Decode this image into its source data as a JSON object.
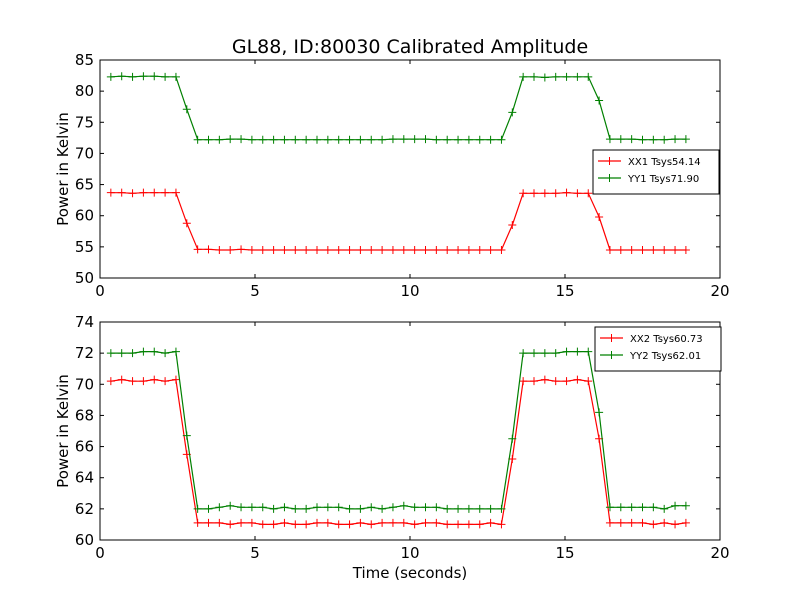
{
  "title": "GL88, ID:80030 Calibrated Amplitude",
  "chart_data": [
    {
      "type": "line",
      "ylabel": "Power in Kelvin",
      "xlabel": "",
      "xlim": [
        0,
        20
      ],
      "ylim": [
        50,
        85
      ],
      "xticks": [
        "0",
        "5",
        "10",
        "15",
        "20"
      ],
      "yticks": [
        "50",
        "55",
        "60",
        "65",
        "70",
        "75",
        "80",
        "85"
      ],
      "legend_position": "right",
      "x": [
        0.35,
        0.7,
        1.05,
        1.4,
        1.75,
        2.1,
        2.45,
        2.8,
        3.15,
        3.5,
        3.85,
        4.2,
        4.55,
        4.9,
        5.25,
        5.6,
        5.95,
        6.3,
        6.65,
        7.0,
        7.35,
        7.7,
        8.05,
        8.4,
        8.75,
        9.1,
        9.45,
        9.8,
        10.15,
        10.5,
        10.85,
        11.2,
        11.55,
        11.9,
        12.25,
        12.6,
        12.95,
        13.3,
        13.65,
        14.0,
        14.35,
        14.7,
        15.05,
        15.4,
        15.75,
        16.1,
        16.45,
        16.8,
        17.15,
        17.5,
        17.85,
        18.2,
        18.55,
        18.9
      ],
      "series": [
        {
          "name": "XX1 Tsys54.14",
          "color": "#ff0000",
          "values": [
            63.7,
            63.7,
            63.6,
            63.7,
            63.7,
            63.7,
            63.7,
            58.8,
            54.6,
            54.6,
            54.5,
            54.5,
            54.6,
            54.5,
            54.5,
            54.5,
            54.5,
            54.5,
            54.5,
            54.5,
            54.5,
            54.5,
            54.5,
            54.5,
            54.5,
            54.5,
            54.5,
            54.5,
            54.5,
            54.5,
            54.5,
            54.5,
            54.5,
            54.5,
            54.5,
            54.5,
            54.5,
            58.5,
            63.6,
            63.6,
            63.6,
            63.6,
            63.7,
            63.6,
            63.6,
            59.8,
            54.5,
            54.5,
            54.5,
            54.5,
            54.5,
            54.5,
            54.5,
            54.5
          ]
        },
        {
          "name": "YY1 Tsys71.90",
          "color": "#008000",
          "values": [
            82.3,
            82.4,
            82.3,
            82.4,
            82.4,
            82.3,
            82.3,
            77.1,
            72.2,
            72.2,
            72.2,
            72.3,
            72.3,
            72.2,
            72.2,
            72.2,
            72.2,
            72.2,
            72.2,
            72.2,
            72.2,
            72.2,
            72.2,
            72.2,
            72.2,
            72.2,
            72.3,
            72.3,
            72.3,
            72.3,
            72.2,
            72.2,
            72.2,
            72.2,
            72.2,
            72.2,
            72.2,
            76.6,
            82.3,
            82.3,
            82.2,
            82.3,
            82.3,
            82.3,
            82.3,
            78.5,
            72.3,
            72.3,
            72.3,
            72.2,
            72.2,
            72.2,
            72.3,
            72.3
          ]
        }
      ]
    },
    {
      "type": "line",
      "ylabel": "Power in Kelvin",
      "xlabel": "Time (seconds)",
      "xlim": [
        0,
        20
      ],
      "ylim": [
        60,
        74
      ],
      "xticks": [
        "0",
        "5",
        "10",
        "15",
        "20"
      ],
      "yticks": [
        "60",
        "62",
        "64",
        "66",
        "68",
        "70",
        "72",
        "74"
      ],
      "legend_position": "top-right",
      "x": [
        0.35,
        0.7,
        1.05,
        1.4,
        1.75,
        2.1,
        2.45,
        2.8,
        3.15,
        3.5,
        3.85,
        4.2,
        4.55,
        4.9,
        5.25,
        5.6,
        5.95,
        6.3,
        6.65,
        7.0,
        7.35,
        7.7,
        8.05,
        8.4,
        8.75,
        9.1,
        9.45,
        9.8,
        10.15,
        10.5,
        10.85,
        11.2,
        11.55,
        11.9,
        12.25,
        12.6,
        12.95,
        13.3,
        13.65,
        14.0,
        14.35,
        14.7,
        15.05,
        15.4,
        15.75,
        16.1,
        16.45,
        16.8,
        17.15,
        17.5,
        17.85,
        18.2,
        18.55,
        18.9
      ],
      "series": [
        {
          "name": "XX2 Tsys60.73",
          "color": "#ff0000",
          "values": [
            70.2,
            70.3,
            70.2,
            70.2,
            70.3,
            70.2,
            70.3,
            65.5,
            61.1,
            61.1,
            61.1,
            61.0,
            61.1,
            61.1,
            61.0,
            61.0,
            61.1,
            61.0,
            61.0,
            61.1,
            61.1,
            61.0,
            61.0,
            61.1,
            61.0,
            61.1,
            61.1,
            61.1,
            61.0,
            61.1,
            61.1,
            61.0,
            61.0,
            61.0,
            61.0,
            61.1,
            61.0,
            65.2,
            70.2,
            70.2,
            70.3,
            70.2,
            70.2,
            70.3,
            70.2,
            66.5,
            61.1,
            61.1,
            61.1,
            61.1,
            61.0,
            61.1,
            61.0,
            61.1
          ]
        },
        {
          "name": "YY2 Tsys62.01",
          "color": "#008000",
          "values": [
            72.0,
            72.0,
            72.0,
            72.1,
            72.1,
            72.0,
            72.1,
            66.7,
            62.0,
            62.0,
            62.1,
            62.2,
            62.1,
            62.1,
            62.1,
            62.0,
            62.1,
            62.0,
            62.0,
            62.1,
            62.1,
            62.1,
            62.0,
            62.0,
            62.1,
            62.0,
            62.1,
            62.2,
            62.1,
            62.1,
            62.1,
            62.0,
            62.0,
            62.0,
            62.0,
            62.0,
            62.0,
            66.5,
            72.0,
            72.0,
            72.0,
            72.0,
            72.1,
            72.1,
            72.1,
            68.2,
            62.1,
            62.1,
            62.1,
            62.1,
            62.1,
            62.0,
            62.2,
            62.2
          ]
        }
      ]
    }
  ]
}
